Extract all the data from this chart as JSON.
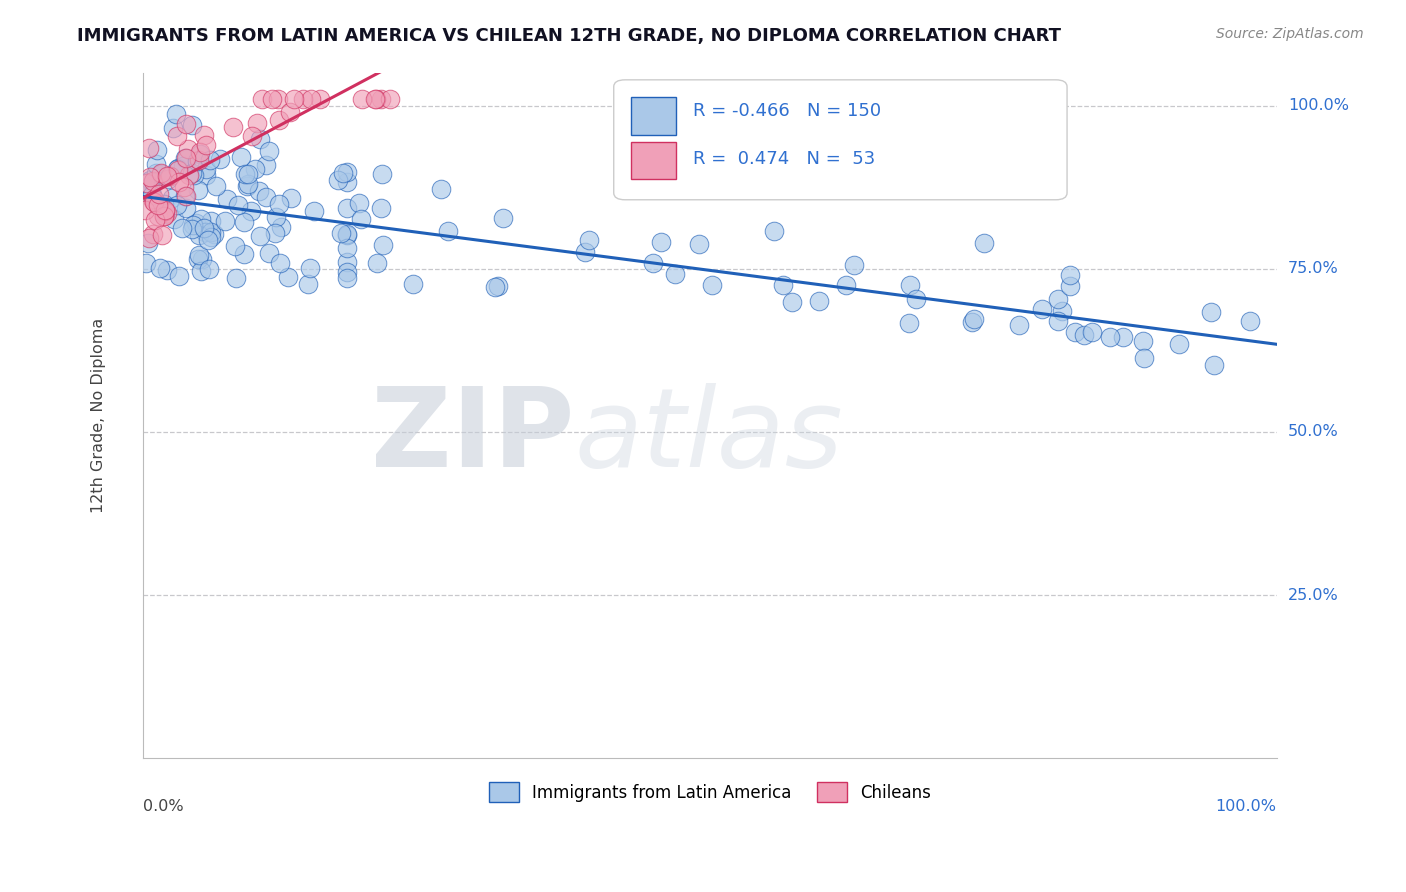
{
  "title": "IMMIGRANTS FROM LATIN AMERICA VS CHILEAN 12TH GRADE, NO DIPLOMA CORRELATION CHART",
  "source": "Source: ZipAtlas.com",
  "ylabel": "12th Grade, No Diploma",
  "legend_label1": "Immigrants from Latin America",
  "legend_label2": "Chileans",
  "r_blue": "-0.466",
  "n_blue": "150",
  "r_pink": "0.474",
  "n_pink": "53",
  "blue_color": "#aac8e8",
  "pink_color": "#f0a0b8",
  "blue_line_color": "#2060b8",
  "pink_line_color": "#d03060",
  "title_color": "#111122",
  "label_color": "#3070d0",
  "axis_label_color": "#444444",
  "watermark_zip_color": "#c8d0de",
  "watermark_atlas_color": "#d5dde8",
  "background_color": "#ffffff",
  "grid_color": "#c8c8cc",
  "source_color": "#888888"
}
